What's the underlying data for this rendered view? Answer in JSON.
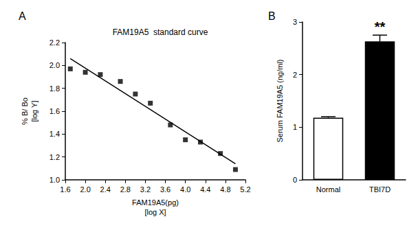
{
  "chart_data": [
    {
      "type": "scatter",
      "label": "A",
      "title": "FAM19A5  standard curve",
      "x_label": [
        "FAM19A5(pg)",
        "[log X]"
      ],
      "y_label": [
        "% B/ Bo",
        "[log Y]"
      ],
      "x": [
        1.7,
        2.0,
        2.3,
        2.7,
        3.0,
        3.3,
        3.7,
        4.0,
        4.3,
        4.7,
        5.0
      ],
      "values": [
        1.97,
        1.94,
        1.92,
        1.86,
        1.75,
        1.67,
        1.48,
        1.35,
        1.33,
        1.23,
        1.09
      ],
      "fit": {
        "x": [
          1.7,
          5.0
        ],
        "values": [
          2.06,
          1.14
        ]
      },
      "color": "#000000",
      "marker": "square",
      "xlim": [
        1.6,
        5.2
      ],
      "xticks": [
        1.6,
        {
          "value": 2,
          "label": "2.0"
        },
        2.4,
        2.8,
        3.2,
        3.6,
        {
          "value": 4,
          "label": "4.0"
        },
        4.4,
        4.8,
        5.2
      ],
      "ylim": [
        1.0,
        2.2
      ],
      "yticks": [
        {
          "value": 1,
          "label": "1.0"
        },
        1.2,
        1.4,
        1.6,
        1.8,
        {
          "value": 2,
          "label": "2.0"
        },
        2.2
      ],
      "grid": false
    },
    {
      "type": "bar",
      "label": "B",
      "y_label": "Serum FAM19A5 (ng/ml)",
      "categories": [
        "Normal",
        "TBI7D"
      ],
      "values": [
        1.18,
        2.63
      ],
      "errors": [
        0.02,
        0.12
      ],
      "colors": [
        "#ffffff",
        "#000000"
      ],
      "annotation": {
        "text": "**",
        "category": "TBI7D"
      },
      "ylim": [
        0,
        3
      ],
      "yticks": [
        0,
        1,
        2,
        3
      ],
      "grid": false
    }
  ]
}
